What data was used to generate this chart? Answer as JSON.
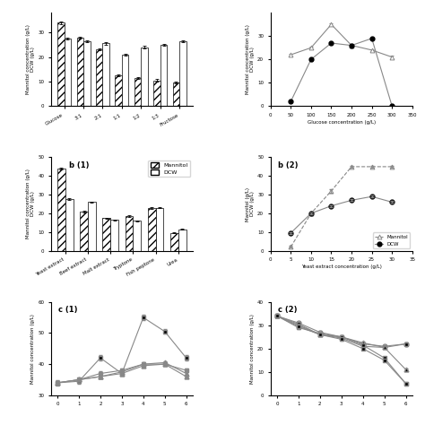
{
  "panel_a1": {
    "categories": [
      "Glucose",
      "3:1",
      "2:1",
      "1:1",
      "1:2",
      "1:3",
      "Fructose"
    ],
    "mannitol": [
      34,
      28,
      23,
      12.5,
      11.5,
      10.5,
      9.5
    ],
    "dcw": [
      27.5,
      26.5,
      25.5,
      21,
      24,
      25,
      26.5
    ],
    "mannitol_err": [
      0.5,
      0.4,
      0.4,
      0.4,
      0.4,
      0.4,
      0.3
    ],
    "dcw_err": [
      0.4,
      0.4,
      0.4,
      0.4,
      0.4,
      0.4,
      0.3
    ],
    "ylabel_left": "Mannitol concentration (g/L)\nDCW (g/L)",
    "ylim": [
      0,
      38
    ],
    "yticks": [
      0,
      10,
      20,
      30
    ]
  },
  "panel_a2": {
    "xlabel": "Glucose concentration (g/L)",
    "ylabel_left": "Mannitol concentration (g/L)\nDCW (g/L)",
    "x": [
      50,
      100,
      150,
      200,
      250,
      300
    ],
    "mannitol": [
      22,
      25,
      35,
      26,
      24,
      21
    ],
    "dcw": [
      2,
      20,
      27,
      26,
      29,
      0
    ],
    "mannitol_err": [
      0.5,
      0.5,
      0.5,
      0.5,
      0.5,
      0.5
    ],
    "dcw_err": [
      0.5,
      0.5,
      0.5,
      0.5,
      0.5,
      0.3
    ],
    "xlim": [
      0,
      350
    ],
    "ylim": [
      0,
      40
    ],
    "yticks": [
      0,
      10,
      20,
      30
    ]
  },
  "panel_b1": {
    "title": "b (1)",
    "categories": [
      "Yeast extract",
      "Beef extract",
      "Malt extract",
      "Tryptone",
      "Fish peptone",
      "Urea"
    ],
    "mannitol": [
      44,
      21,
      17.5,
      18.5,
      23,
      9.5
    ],
    "dcw": [
      27.5,
      26,
      16.5,
      16,
      23,
      11.5
    ],
    "mannitol_err": [
      0.5,
      0.4,
      0.3,
      0.3,
      0.4,
      0.3
    ],
    "dcw_err": [
      0.4,
      0.4,
      0.3,
      0.3,
      0.3,
      0.3
    ],
    "ylabel_left": "Mannitol concentration (g/L)\nDCW (g/L)",
    "ylim": [
      0,
      50
    ],
    "yticks": [
      0,
      10,
      20,
      30,
      40,
      50
    ]
  },
  "panel_b2": {
    "title": "b (2)",
    "xlabel": "Yeast extract concentration (g/L)",
    "ylabel_left": "Mannitol (g/L)\nDCW (g/L)",
    "x": [
      5,
      10,
      15,
      20,
      25,
      30
    ],
    "mannitol": [
      2,
      20,
      32,
      45,
      45,
      45
    ],
    "dcw": [
      9.5,
      20,
      24,
      27,
      29,
      26
    ],
    "mannitol_err": [
      0.5,
      0.5,
      0.8,
      0.5,
      0.5,
      0.5
    ],
    "dcw_err": [
      0.5,
      0.5,
      0.5,
      0.5,
      0.5,
      0.5
    ],
    "xlim": [
      0,
      35
    ],
    "ylim": [
      0,
      50
    ],
    "yticks": [
      0,
      10,
      20,
      30,
      40,
      50
    ]
  },
  "panel_c1": {
    "title": "c (1)",
    "ylabel": "Mannitol concentration (g/L)",
    "x": [
      0,
      1,
      2,
      3,
      4,
      5,
      6
    ],
    "series": [
      {
        "y": [
          34,
          34.5,
          42,
          37,
          55,
          50.5,
          42
        ],
        "marker": "s",
        "filled": true
      },
      {
        "y": [
          34,
          35,
          37,
          38,
          40,
          40,
          38
        ],
        "marker": "s",
        "filled": true
      },
      {
        "y": [
          34,
          35,
          36,
          37.5,
          40,
          40.5,
          37
        ],
        "marker": "^",
        "filled": true
      },
      {
        "y": [
          34,
          35,
          36,
          37,
          39.5,
          40,
          36
        ],
        "marker": "^",
        "filled": true
      }
    ],
    "series_err": [
      0.8,
      0.6,
      0.5,
      0.5
    ],
    "ylim": [
      30,
      60
    ],
    "yticks": [
      30,
      40,
      50,
      60
    ]
  },
  "panel_c2": {
    "title": "c (2)",
    "ylabel": "Mannitol concentration (g/L)",
    "x": [
      0,
      1,
      2,
      3,
      4,
      5,
      6
    ],
    "series": [
      {
        "y": [
          34,
          31,
          27,
          25,
          22,
          21,
          22
        ],
        "marker": "o",
        "filled": false
      },
      {
        "y": [
          34,
          30.5,
          26,
          24.5,
          21,
          20.5,
          22
        ],
        "marker": "s",
        "filled": true
      },
      {
        "y": [
          34,
          30,
          26,
          25,
          22.5,
          20.5,
          11
        ],
        "marker": "^",
        "filled": true
      },
      {
        "y": [
          34,
          29,
          26.5,
          25,
          21.5,
          16,
          5
        ],
        "marker": "s",
        "filled": true
      },
      {
        "y": [
          34,
          29.5,
          26,
          24,
          20,
          15,
          5
        ],
        "marker": "s",
        "filled": true
      }
    ],
    "series_err": [
      0.5,
      0.5,
      0.5,
      0.5,
      0.5
    ],
    "ylim": [
      0,
      40
    ],
    "yticks": [
      0,
      10,
      20,
      30,
      40
    ]
  },
  "legend_b1": {
    "mannitol_label": "Mannitol",
    "dcw_label": "DCW"
  },
  "legend_b2": {
    "mannitol_label": "Mannitol",
    "dcw_label": "DCW"
  },
  "hatch_pattern": "////",
  "bar_width": 0.35,
  "gray": "#888888",
  "dark": "#333333"
}
